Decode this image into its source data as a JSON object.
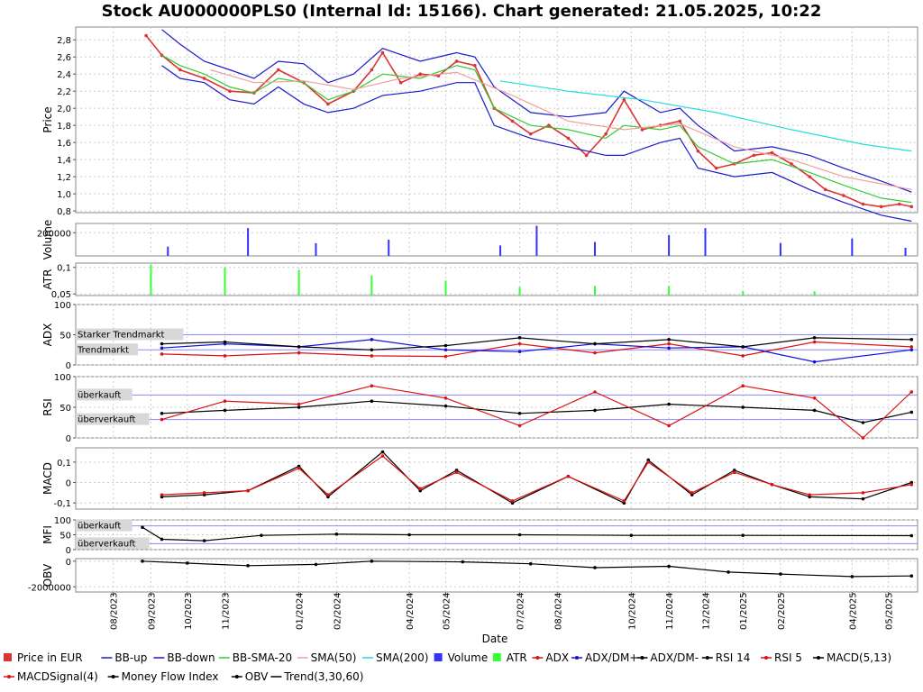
{
  "title": "Stock AU000000PLS0 (Internal Id: 15166). Chart generated: 21.05.2025, 10:22",
  "colors": {
    "price": "#dd3333",
    "bb": "#1a1acc",
    "bb_sma": "#33cc33",
    "sma50": "#f0a0a0",
    "sma200": "#22dddd",
    "volume": "#3333ff",
    "atr": "#33ff33",
    "adx": "#dd1111",
    "dm_plus": "#1111dd",
    "dm_minus": "#000000",
    "rsi14": "#000000",
    "rsi5": "#dd1111",
    "macd": "#000000",
    "macd_signal": "#dd1111",
    "mfi": "#000000",
    "obv": "#000000",
    "ref_line": "#8888ff",
    "grid": "#cccccc"
  },
  "x_axis": {
    "label": "Date",
    "ticks": [
      "08/2023",
      "09/2023",
      "10/2023",
      "11/2023",
      "01/2024",
      "02/2024",
      "04/2024",
      "05/2024",
      "07/2024",
      "08/2024",
      "10/2024",
      "11/2024",
      "12/2024",
      "01/2025",
      "02/2025",
      "04/2025",
      "05/2025"
    ],
    "tick_dates": [
      "2023-08-01",
      "2023-09-01",
      "2023-10-01",
      "2023-11-01",
      "2024-01-01",
      "2024-02-01",
      "2024-04-01",
      "2024-05-01",
      "2024-07-01",
      "2024-08-01",
      "2024-10-01",
      "2024-11-01",
      "2024-12-01",
      "2025-01-01",
      "2025-02-01",
      "2025-04-01",
      "2025-05-01"
    ],
    "range": [
      "2023-07-01",
      "2025-05-25"
    ]
  },
  "legend": [
    "Price in EUR",
    "BB-up",
    "BB-down",
    "BB-SMA-20",
    "SMA(50)",
    "SMA(200)",
    "Volume",
    "ATR",
    "ADX",
    "ADX/DM+",
    "ADX/DM-",
    "RSI 14",
    "RSI 5",
    "MACD(5,13)",
    "MACDSignal(4)",
    "Money Flow Index",
    "OBV",
    "Trend(3,30,60)"
  ],
  "panels": {
    "price": {
      "ylabel": "Price",
      "ylim": [
        0.78,
        2.95
      ],
      "ticks": [
        "2,8",
        "2,6",
        "2,4",
        "2,2",
        "2,0",
        "1,8",
        "1,6",
        "1,4",
        "1,2",
        "1,0",
        "0,8"
      ],
      "tick_values": [
        2.8,
        2.6,
        2.4,
        2.2,
        2.0,
        1.8,
        1.6,
        1.4,
        1.2,
        1.0,
        0.8
      ]
    },
    "volume": {
      "ylabel": "Volume",
      "ylim": [
        0,
        280000
      ],
      "ticks": [
        "200000"
      ],
      "tick_values": [
        200000
      ]
    },
    "atr": {
      "ylabel": "ATR",
      "ylim": [
        0.047,
        0.108
      ],
      "ticks": [
        "0,1",
        "0,05"
      ],
      "tick_values": [
        0.1,
        0.05
      ]
    },
    "adx": {
      "ylabel": "ADX",
      "ylim": [
        0,
        100
      ],
      "ticks": [
        "100",
        "50",
        "0"
      ],
      "tick_values": [
        100,
        50,
        0
      ],
      "labels": [
        "Starker Trendmarkt",
        "Trendmarkt"
      ],
      "lines": [
        50,
        25
      ]
    },
    "rsi": {
      "ylabel": "RSI",
      "ylim": [
        0,
        100
      ],
      "ticks": [
        "100",
        "50",
        "0"
      ],
      "tick_values": [
        100,
        50,
        0
      ],
      "labels": [
        "überkauft",
        "überverkauft"
      ],
      "lines": [
        70,
        30
      ]
    },
    "macd": {
      "ylabel": "MACD",
      "ylim": [
        -0.13,
        0.17
      ],
      "ticks": [
        "0,1",
        "0",
        "-0,1"
      ],
      "tick_values": [
        0.1,
        0,
        -0.1
      ]
    },
    "mfi": {
      "ylabel": "MFI",
      "ylim": [
        0,
        100
      ],
      "ticks": [
        "100",
        "50",
        "0"
      ],
      "tick_values": [
        100,
        50,
        0
      ],
      "labels": [
        "überkauft",
        "überverkauft"
      ],
      "lines": [
        80,
        20
      ]
    },
    "obv": {
      "ylabel": "OBV",
      "ylim": [
        -2400000,
        200000
      ],
      "ticks": [
        "0",
        "-2000000"
      ],
      "tick_values": [
        0,
        -2000000
      ]
    }
  },
  "chart_data": [
    {
      "type": "line",
      "panel": "price",
      "ylabel": "Price",
      "series": [
        {
          "name": "Price in EUR",
          "x": [
            "2023-08-28",
            "2023-09-10",
            "2023-09-25",
            "2023-10-15",
            "2023-11-05",
            "2023-11-25",
            "2023-12-15",
            "2024-01-05",
            "2024-01-25",
            "2024-02-15",
            "2024-03-01",
            "2024-03-10",
            "2024-03-25",
            "2024-04-10",
            "2024-04-25",
            "2024-05-10",
            "2024-05-25",
            "2024-06-10",
            "2024-06-25",
            "2024-07-10",
            "2024-07-25",
            "2024-08-10",
            "2024-08-25",
            "2024-09-10",
            "2024-09-25",
            "2024-10-10",
            "2024-10-25",
            "2024-11-10",
            "2024-11-25",
            "2024-12-10",
            "2024-12-25",
            "2025-01-10",
            "2025-01-25",
            "2025-02-10",
            "2025-02-25",
            "2025-03-10",
            "2025-03-25",
            "2025-04-10",
            "2025-04-25",
            "2025-05-10",
            "2025-05-20"
          ],
          "y": [
            2.85,
            2.62,
            2.45,
            2.35,
            2.2,
            2.18,
            2.45,
            2.3,
            2.05,
            2.2,
            2.45,
            2.65,
            2.3,
            2.4,
            2.38,
            2.55,
            2.5,
            2.0,
            1.85,
            1.7,
            1.8,
            1.65,
            1.45,
            1.7,
            2.1,
            1.75,
            1.8,
            1.85,
            1.5,
            1.3,
            1.35,
            1.45,
            1.48,
            1.35,
            1.2,
            1.05,
            0.98,
            0.88,
            0.85,
            0.88,
            0.85
          ]
        },
        {
          "name": "BB-up",
          "x": [
            "2023-09-10",
            "2023-09-25",
            "2023-10-15",
            "2023-11-05",
            "2023-11-25",
            "2023-12-15",
            "2024-01-05",
            "2024-01-25",
            "2024-02-15",
            "2024-03-10",
            "2024-04-10",
            "2024-05-10",
            "2024-05-25",
            "2024-06-10",
            "2024-07-10",
            "2024-08-10",
            "2024-09-10",
            "2024-09-25",
            "2024-10-25",
            "2024-11-10",
            "2024-11-25",
            "2024-12-25",
            "2025-01-25",
            "2025-02-25",
            "2025-03-25",
            "2025-04-25",
            "2025-05-20"
          ],
          "y": [
            2.92,
            2.75,
            2.55,
            2.45,
            2.35,
            2.55,
            2.52,
            2.3,
            2.4,
            2.7,
            2.55,
            2.65,
            2.6,
            2.25,
            1.95,
            1.9,
            1.95,
            2.2,
            1.95,
            2.0,
            1.8,
            1.5,
            1.55,
            1.45,
            1.3,
            1.15,
            1.02
          ]
        },
        {
          "name": "BB-down",
          "x": [
            "2023-09-10",
            "2023-09-25",
            "2023-10-15",
            "2023-11-05",
            "2023-11-25",
            "2023-12-15",
            "2024-01-05",
            "2024-01-25",
            "2024-02-15",
            "2024-03-10",
            "2024-04-10",
            "2024-05-10",
            "2024-05-25",
            "2024-06-10",
            "2024-07-10",
            "2024-08-10",
            "2024-09-10",
            "2024-09-25",
            "2024-10-25",
            "2024-11-10",
            "2024-11-25",
            "2024-12-25",
            "2025-01-25",
            "2025-02-25",
            "2025-03-25",
            "2025-04-25",
            "2025-05-20"
          ],
          "y": [
            2.5,
            2.35,
            2.3,
            2.1,
            2.05,
            2.25,
            2.05,
            1.95,
            2.0,
            2.15,
            2.2,
            2.3,
            2.3,
            1.8,
            1.65,
            1.55,
            1.45,
            1.45,
            1.6,
            1.65,
            1.3,
            1.2,
            1.25,
            1.05,
            0.9,
            0.75,
            0.68
          ]
        },
        {
          "name": "BB-SMA-20",
          "x": [
            "2023-09-10",
            "2023-09-25",
            "2023-10-15",
            "2023-11-05",
            "2023-11-25",
            "2023-12-15",
            "2024-01-05",
            "2024-01-25",
            "2024-02-15",
            "2024-03-10",
            "2024-04-10",
            "2024-05-10",
            "2024-05-25",
            "2024-06-10",
            "2024-07-10",
            "2024-08-10",
            "2024-09-10",
            "2024-09-25",
            "2024-10-25",
            "2024-11-10",
            "2024-11-25",
            "2024-12-25",
            "2025-01-25",
            "2025-02-25",
            "2025-03-25",
            "2025-04-25",
            "2025-05-20"
          ],
          "y": [
            2.62,
            2.5,
            2.4,
            2.25,
            2.18,
            2.35,
            2.3,
            2.1,
            2.2,
            2.4,
            2.35,
            2.5,
            2.45,
            2.0,
            1.8,
            1.75,
            1.65,
            1.8,
            1.75,
            1.8,
            1.55,
            1.35,
            1.4,
            1.25,
            1.1,
            0.95,
            0.9
          ]
        },
        {
          "name": "SMA(50)",
          "x": [
            "2023-10-20",
            "2023-11-25",
            "2024-01-05",
            "2024-02-15",
            "2024-03-25",
            "2024-05-10",
            "2024-06-25",
            "2024-08-10",
            "2024-09-25",
            "2024-11-10",
            "2024-12-25",
            "2025-02-10",
            "2025-03-25",
            "2025-05-20"
          ],
          "y": [
            2.45,
            2.3,
            2.32,
            2.22,
            2.35,
            2.42,
            2.15,
            1.85,
            1.75,
            1.82,
            1.55,
            1.4,
            1.2,
            1.05
          ]
        },
        {
          "name": "SMA(200)",
          "x": [
            "2024-06-15",
            "2024-08-10",
            "2024-10-10",
            "2024-12-10",
            "2025-02-10",
            "2025-04-10",
            "2025-05-20"
          ],
          "y": [
            2.32,
            2.2,
            2.1,
            1.95,
            1.75,
            1.58,
            1.5
          ]
        }
      ]
    },
    {
      "type": "bar",
      "panel": "volume",
      "ylabel": "Volume",
      "series": [
        {
          "name": "Volume",
          "x": [
            "2023-09-15",
            "2023-11-20",
            "2024-01-15",
            "2024-03-15",
            "2024-06-15",
            "2024-07-15",
            "2024-09-01",
            "2024-11-01",
            "2024-12-01",
            "2025-02-01",
            "2025-04-01",
            "2025-05-15"
          ],
          "y": [
            80000,
            240000,
            110000,
            140000,
            90000,
            260000,
            120000,
            180000,
            240000,
            110000,
            150000,
            70000
          ]
        }
      ]
    },
    {
      "type": "bar",
      "panel": "atr",
      "ylabel": "ATR",
      "series": [
        {
          "name": "ATR",
          "x": [
            "2023-09-01",
            "2023-11-01",
            "2024-01-01",
            "2024-03-01",
            "2024-05-01",
            "2024-07-01",
            "2024-09-01",
            "2024-11-01",
            "2025-01-01",
            "2025-03-01",
            "2025-05-20"
          ],
          "y": [
            0.105,
            0.1,
            0.095,
            0.085,
            0.075,
            0.063,
            0.065,
            0.065,
            0.055,
            0.055,
            0.049
          ]
        }
      ]
    },
    {
      "type": "line",
      "panel": "adx",
      "ylabel": "ADX",
      "series": [
        {
          "name": "ADX",
          "x": [
            "2023-09-10",
            "2023-11-01",
            "2024-01-01",
            "2024-03-01",
            "2024-05-01",
            "2024-07-01",
            "2024-09-01",
            "2024-11-01",
            "2025-01-01",
            "2025-03-01",
            "2025-05-20"
          ],
          "y": [
            18,
            15,
            20,
            15,
            14,
            35,
            20,
            35,
            15,
            38,
            30
          ]
        },
        {
          "name": "ADX/DM+",
          "x": [
            "2023-09-10",
            "2023-11-01",
            "2024-01-01",
            "2024-03-01",
            "2024-05-01",
            "2024-07-01",
            "2024-09-01",
            "2024-11-01",
            "2025-01-01",
            "2025-03-01",
            "2025-05-20"
          ],
          "y": [
            28,
            35,
            30,
            42,
            25,
            22,
            35,
            28,
            30,
            5,
            25
          ]
        },
        {
          "name": "ADX/DM-",
          "x": [
            "2023-09-10",
            "2023-11-01",
            "2024-01-01",
            "2024-03-01",
            "2024-05-01",
            "2024-07-01",
            "2024-09-01",
            "2024-11-01",
            "2025-01-01",
            "2025-03-01",
            "2025-05-20"
          ],
          "y": [
            35,
            38,
            30,
            25,
            32,
            45,
            35,
            42,
            30,
            45,
            42
          ]
        }
      ]
    },
    {
      "type": "line",
      "panel": "rsi",
      "ylabel": "RSI",
      "series": [
        {
          "name": "RSI 14",
          "x": [
            "2023-09-10",
            "2023-11-01",
            "2024-01-01",
            "2024-03-01",
            "2024-05-01",
            "2024-07-01",
            "2024-09-01",
            "2024-11-01",
            "2025-01-01",
            "2025-03-01",
            "2025-04-10",
            "2025-05-20"
          ],
          "y": [
            40,
            45,
            50,
            60,
            52,
            40,
            45,
            55,
            50,
            45,
            25,
            42
          ]
        },
        {
          "name": "RSI 5",
          "x": [
            "2023-09-10",
            "2023-11-01",
            "2024-01-01",
            "2024-03-01",
            "2024-05-01",
            "2024-07-01",
            "2024-09-01",
            "2024-11-01",
            "2025-01-01",
            "2025-03-01",
            "2025-04-10",
            "2025-05-20"
          ],
          "y": [
            30,
            60,
            55,
            85,
            65,
            20,
            75,
            20,
            85,
            65,
            0,
            75
          ]
        }
      ]
    },
    {
      "type": "line",
      "panel": "macd",
      "ylabel": "MACD",
      "series": [
        {
          "name": "MACD(5,13)",
          "x": [
            "2023-09-10",
            "2023-10-15",
            "2023-11-20",
            "2024-01-01",
            "2024-01-25",
            "2024-03-10",
            "2024-04-10",
            "2024-05-10",
            "2024-06-25",
            "2024-08-10",
            "2024-09-25",
            "2024-10-15",
            "2024-11-20",
            "2024-12-25",
            "2025-01-25",
            "2025-02-25",
            "2025-04-10",
            "2025-05-20"
          ],
          "y": [
            -0.07,
            -0.06,
            -0.04,
            0.08,
            -0.07,
            0.15,
            -0.04,
            0.06,
            -0.1,
            0.03,
            -0.1,
            0.11,
            -0.06,
            0.06,
            -0.01,
            -0.07,
            -0.08,
            0.0
          ]
        },
        {
          "name": "MACDSignal(4)",
          "x": [
            "2023-09-10",
            "2023-10-15",
            "2023-11-20",
            "2024-01-01",
            "2024-01-25",
            "2024-03-10",
            "2024-04-10",
            "2024-05-10",
            "2024-06-25",
            "2024-08-10",
            "2024-09-25",
            "2024-10-15",
            "2024-11-20",
            "2024-12-25",
            "2025-01-25",
            "2025-02-25",
            "2025-04-10",
            "2025-05-20"
          ],
          "y": [
            -0.06,
            -0.05,
            -0.04,
            0.07,
            -0.06,
            0.13,
            -0.03,
            0.05,
            -0.09,
            0.03,
            -0.09,
            0.1,
            -0.05,
            0.05,
            -0.01,
            -0.06,
            -0.05,
            -0.01
          ]
        }
      ]
    },
    {
      "type": "line",
      "panel": "mfi",
      "ylabel": "MFI",
      "series": [
        {
          "name": "Money Flow Index",
          "x": [
            "2023-08-25",
            "2023-09-10",
            "2023-10-15",
            "2023-12-01",
            "2024-02-01",
            "2024-04-01",
            "2024-07-01",
            "2024-10-01",
            "2025-01-01",
            "2025-05-20"
          ],
          "y": [
            75,
            35,
            30,
            48,
            52,
            50,
            50,
            48,
            48,
            47
          ]
        }
      ]
    },
    {
      "type": "line",
      "panel": "obv",
      "ylabel": "OBV",
      "series": [
        {
          "name": "OBV",
          "x": [
            "2023-08-25",
            "2023-10-01",
            "2023-11-20",
            "2024-01-15",
            "2024-03-01",
            "2024-05-15",
            "2024-07-10",
            "2024-09-01",
            "2024-11-01",
            "2024-12-20",
            "2025-02-01",
            "2025-04-01",
            "2025-05-20"
          ],
          "y": [
            0,
            -150000,
            -350000,
            -250000,
            0,
            -50000,
            -200000,
            -500000,
            -400000,
            -850000,
            -1000000,
            -1200000,
            -1150000
          ]
        }
      ]
    }
  ]
}
